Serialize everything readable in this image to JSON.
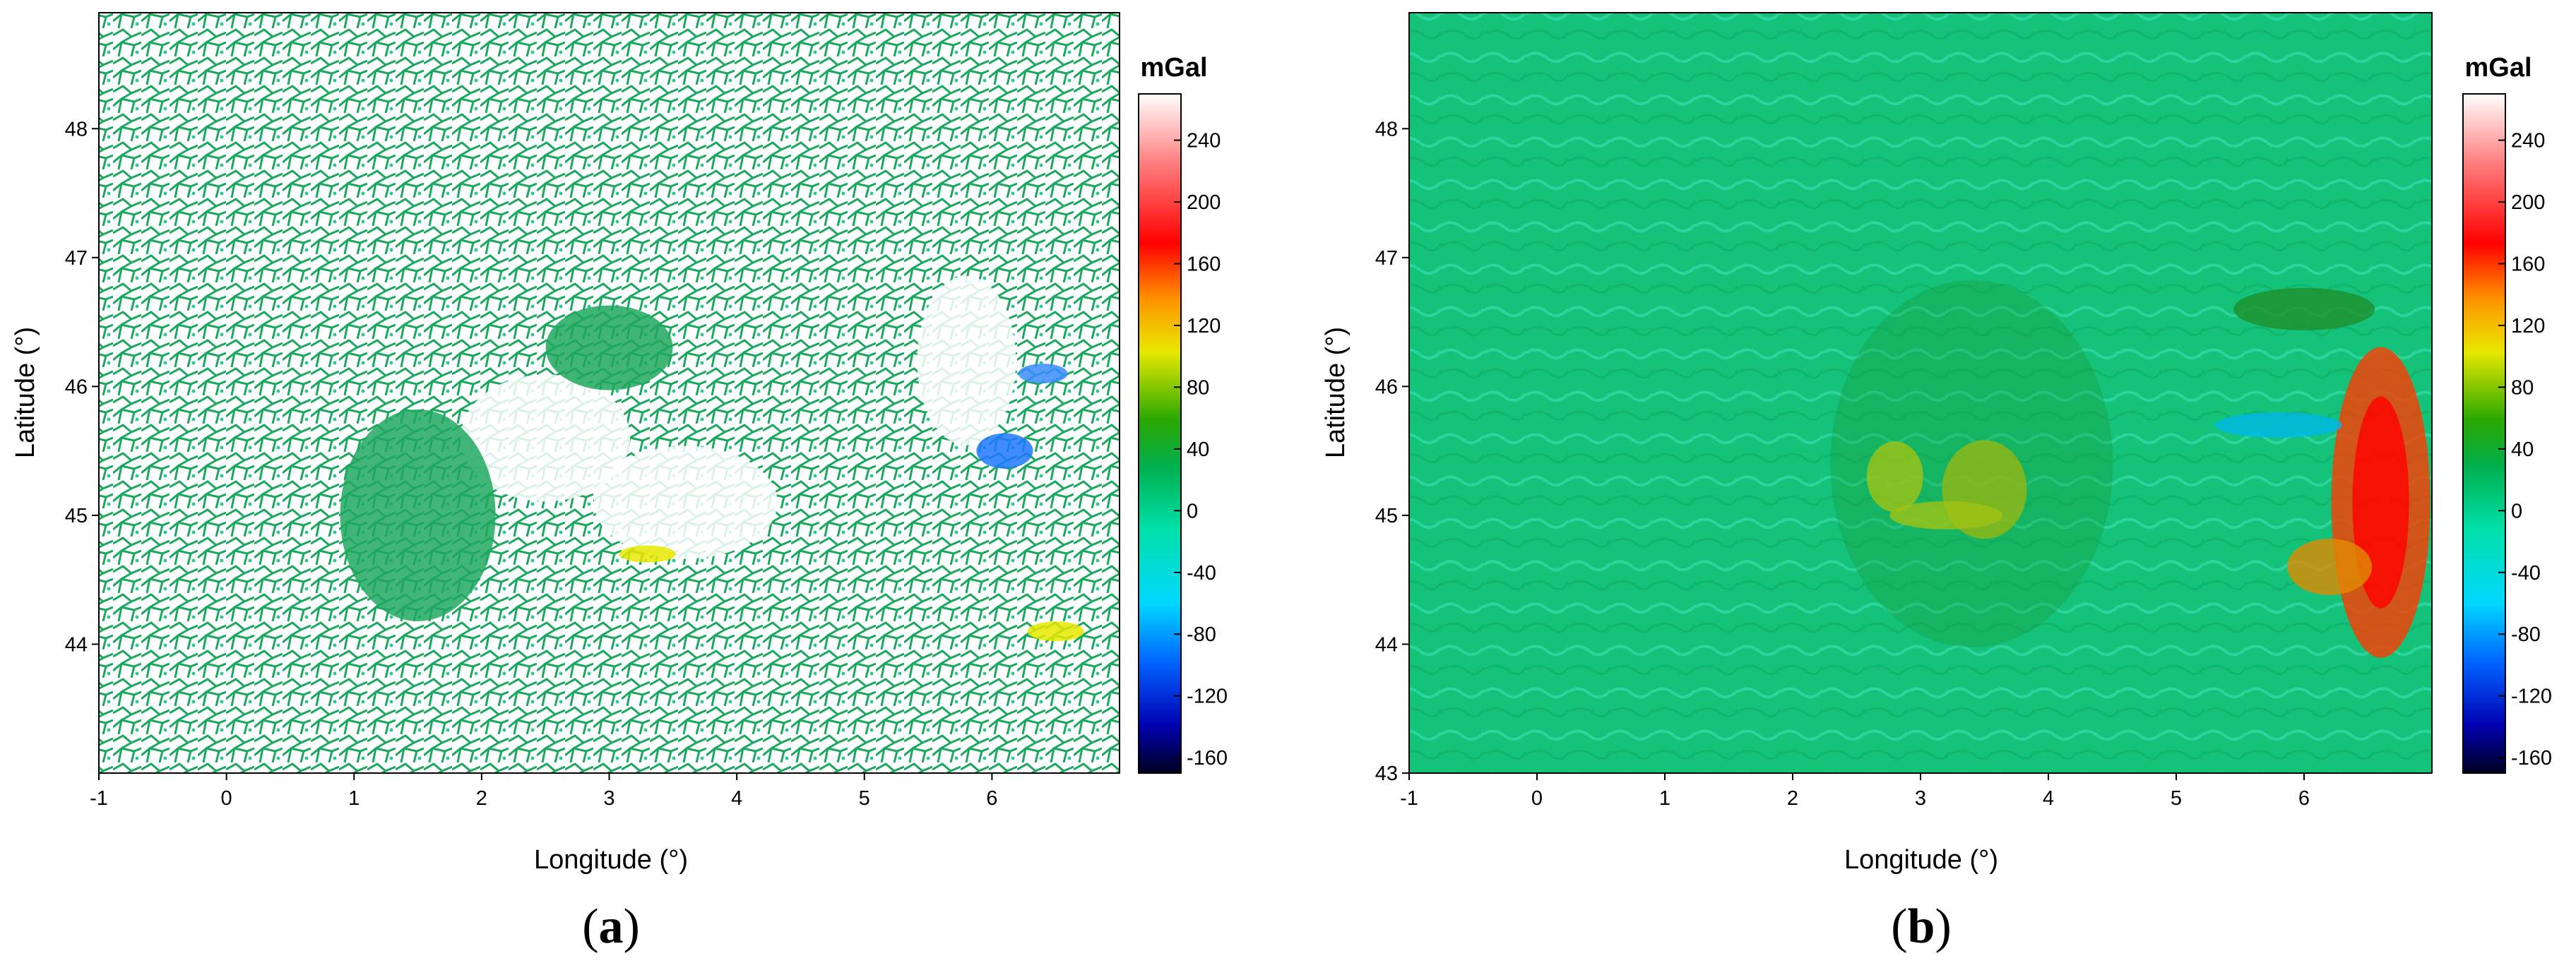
{
  "chart_data": [
    {
      "type": "heatmap",
      "panel_label": "a",
      "xlabel": "Longitude (°)",
      "ylabel": "Latitude (°)",
      "xlim": [
        -1,
        7
      ],
      "ylim": [
        43,
        48.9
      ],
      "xticks": [
        -1,
        0,
        1,
        2,
        3,
        4,
        5,
        6
      ],
      "yticks": [
        44,
        45,
        46,
        47,
        48
      ],
      "colorbar": {
        "unit": "mGal",
        "range": [
          -170,
          270
        ],
        "ticks": [
          240,
          200,
          160,
          120,
          80,
          40,
          0,
          -40,
          -80,
          -120,
          -160
        ],
        "colors": [
          "#000020",
          "#0000b0",
          "#0060ff",
          "#00d8ff",
          "#00e0a8",
          "#00b050",
          "#2aa800",
          "#e8e800",
          "#ff9000",
          "#ff0000",
          "#ff8080",
          "#ffffff"
        ]
      },
      "description_values": {
        "background_anomaly_mgal": -10,
        "coverage": "sparse point and track data"
      }
    },
    {
      "type": "heatmap",
      "panel_label": "b",
      "xlabel": "Longitude (°)",
      "ylabel": "Latitude (°)",
      "xlim": [
        -1,
        7
      ],
      "ylim": [
        43,
        48.9
      ],
      "xticks": [
        -1,
        0,
        1,
        2,
        3,
        4,
        5,
        6
      ],
      "yticks": [
        43,
        44,
        45,
        46,
        47,
        48
      ],
      "colorbar": {
        "unit": "mGal",
        "range": [
          -170,
          270
        ],
        "ticks": [
          240,
          200,
          160,
          120,
          80,
          40,
          0,
          -40,
          -80,
          -120,
          -160
        ],
        "colors": [
          "#000020",
          "#0000b0",
          "#0060ff",
          "#00d8ff",
          "#00e0a8",
          "#00b050",
          "#2aa800",
          "#e8e800",
          "#ff9000",
          "#ff0000",
          "#ff8080",
          "#ffffff"
        ]
      },
      "description_values": {
        "background_anomaly_mgal": -5,
        "coverage": "continuous gridded field"
      }
    }
  ],
  "panels": [
    {
      "caption": "a"
    },
    {
      "caption": "b"
    }
  ]
}
